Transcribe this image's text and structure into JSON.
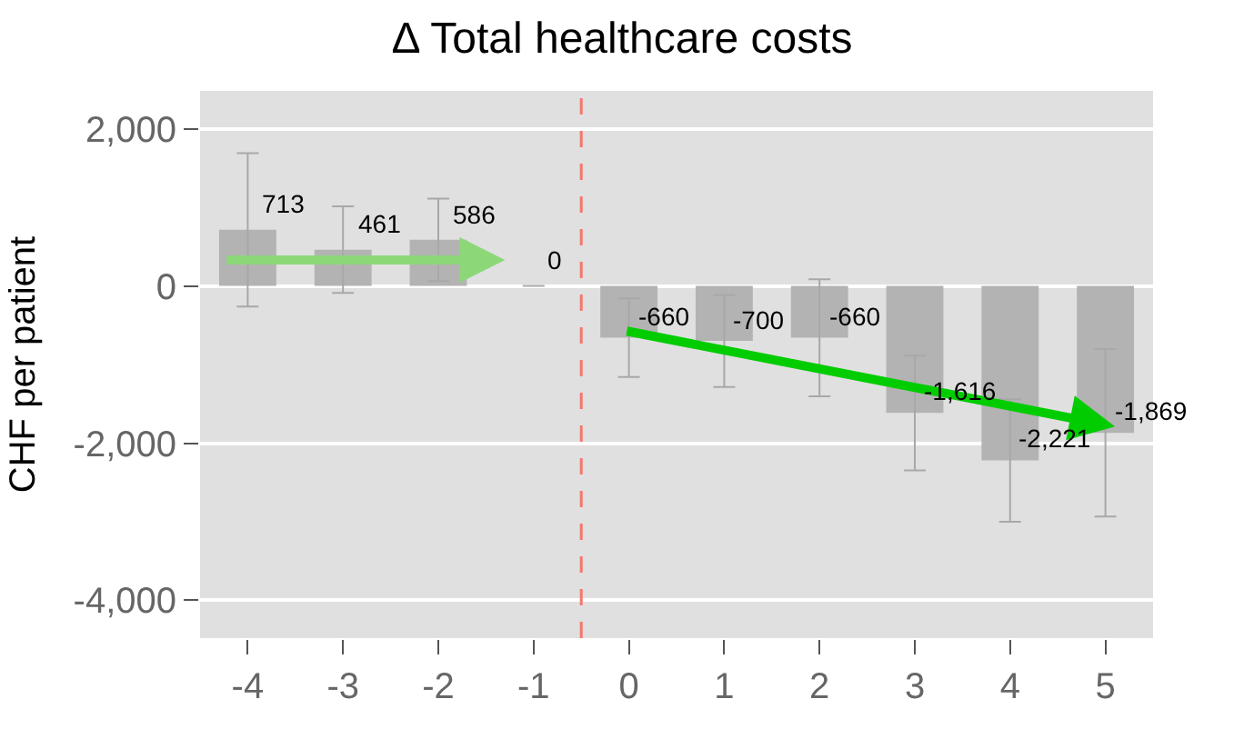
{
  "chart_data": {
    "type": "bar",
    "title": "Δ Total healthcare costs",
    "ylabel": "CHF per patient",
    "x": [
      -4,
      -3,
      -2,
      -1,
      0,
      1,
      2,
      3,
      4,
      5
    ],
    "series": [
      {
        "color": "#b3b3b3",
        "values": [
          713,
          461,
          586,
          0,
          -660,
          -700,
          -660,
          -1616,
          -2221,
          -1869
        ],
        "value_labels": [
          "713",
          "461",
          "586",
          "0",
          "-660",
          "-700",
          "-660",
          "-1,616",
          "-2,221",
          "-1,869"
        ],
        "errors": [
          976,
          550,
          525,
          null,
          500,
          585,
          745,
          730,
          779,
          1065
        ]
      }
    ],
    "xlim": [
      -4.5,
      5.5
    ],
    "xticks": [
      -4,
      -3,
      -2,
      -1,
      0,
      1,
      2,
      3,
      4,
      5
    ],
    "ylim": [
      -4480,
      2480
    ],
    "yticks": [
      {
        "value": 2000,
        "label": "2,000"
      },
      0,
      {
        "value": -2000,
        "label": "-2,000"
      },
      {
        "value": -4000,
        "label": "-4,000"
      }
    ],
    "grid": "y",
    "ref_lines": [
      {
        "axis": "x",
        "value": -0.5,
        "color": "#f8766d",
        "line_style": "dashed"
      }
    ]
  }
}
